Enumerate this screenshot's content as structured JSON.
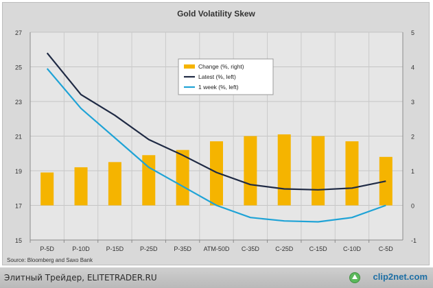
{
  "chart_data": {
    "type": "bar",
    "title": "Gold Volatility  Skew",
    "categories": [
      "P-5D",
      "P-10D",
      "P-15D",
      "P-25D",
      "P-35D",
      "ATM-50D",
      "C-35D",
      "C-25D",
      "C-15D",
      "C-10D",
      "C-5D"
    ],
    "left_axis": {
      "ylim": [
        15,
        27
      ],
      "ticks": [
        15,
        17,
        19,
        21,
        23,
        25,
        27
      ]
    },
    "right_axis": {
      "ylim": [
        -1,
        5
      ],
      "ticks": [
        -1,
        0,
        1,
        2,
        3,
        4,
        5
      ]
    },
    "grid": true,
    "legend_position": "top-center",
    "series": [
      {
        "name": "Change (%, right)",
        "kind": "bar",
        "axis": "right",
        "color": "#f5b400",
        "values": [
          0.95,
          1.1,
          1.25,
          1.45,
          1.6,
          1.85,
          2.0,
          2.05,
          2.0,
          1.85,
          1.4
        ]
      },
      {
        "name": "Latest (%, left)",
        "kind": "line",
        "axis": "left",
        "color": "#1f2a44",
        "values": [
          25.8,
          23.4,
          22.2,
          20.8,
          19.9,
          18.9,
          18.2,
          17.95,
          17.9,
          18.0,
          18.4
        ]
      },
      {
        "name": "1 week (%, left)",
        "kind": "line",
        "axis": "left",
        "color": "#1fa3d6",
        "values": [
          24.9,
          22.6,
          20.9,
          19.2,
          18.1,
          17.0,
          16.3,
          16.1,
          16.05,
          16.3,
          17.0
        ]
      }
    ],
    "source": "Source: Bloomberg and Saxo Bank"
  },
  "footer": {
    "text": "Элитный Трейдер, ELITETRADER.RU",
    "logo": "clip2net.com"
  }
}
